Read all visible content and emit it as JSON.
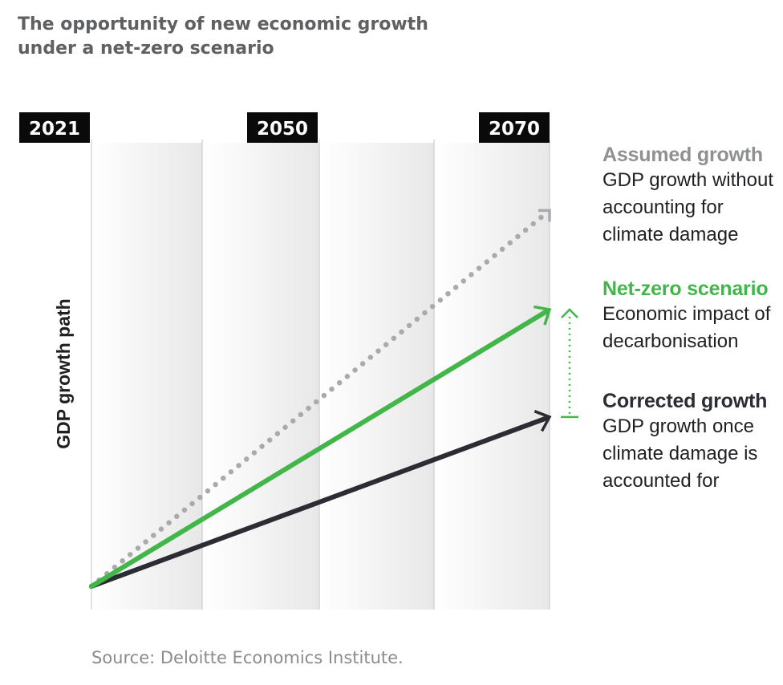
{
  "title": {
    "line1": "The opportunity of new economic growth",
    "line2": "under a net-zero scenario"
  },
  "source": "Source: Deloitte Economics Institute.",
  "chart_data": {
    "type": "line",
    "ylabel": "GDP growth path",
    "x_markers": [
      "2021",
      "2050",
      "2070"
    ],
    "x_range": [
      2021,
      2070
    ],
    "y_range": [
      0,
      100
    ],
    "grid": "vertical",
    "series": [
      {
        "name": "Assumed growth",
        "description": [
          "GDP growth without",
          "accounting for",
          "climate damage"
        ],
        "style": "dotted",
        "color": "#a9aaac",
        "x": [
          2021,
          2070
        ],
        "values": [
          0,
          91
        ]
      },
      {
        "name": "Net-zero scenario",
        "description": [
          "Economic impact of",
          "decarbonisation"
        ],
        "style": "solid",
        "color": "#43b649",
        "x": [
          2021,
          2070
        ],
        "values": [
          0,
          67
        ]
      },
      {
        "name": "Corrected growth",
        "description": [
          "GDP growth once",
          "climate damage is",
          "accounted for"
        ],
        "style": "solid",
        "color": "#2c2d34",
        "x": [
          2021,
          2070
        ],
        "values": [
          0,
          41
        ]
      }
    ],
    "annotation": {
      "type": "dotted-arrow",
      "from_series": "Corrected growth",
      "to_series": "Net-zero scenario",
      "color": "#43b649"
    }
  }
}
